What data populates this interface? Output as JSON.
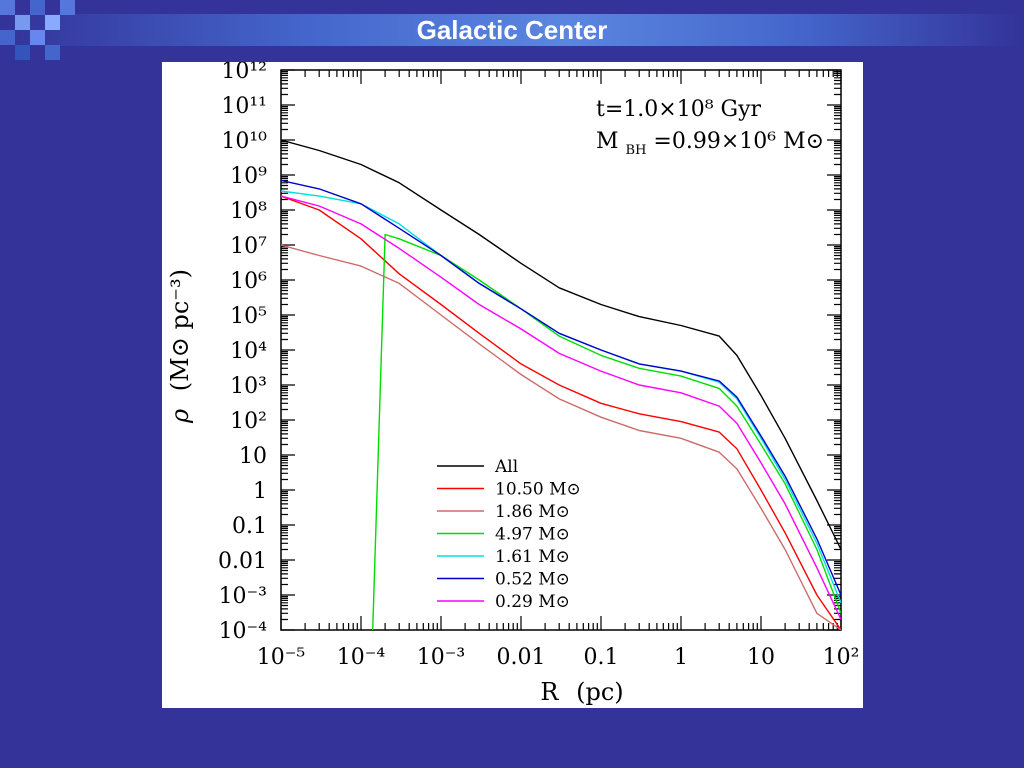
{
  "slide": {
    "title": "Galactic Center"
  },
  "chart_data": {
    "type": "line",
    "xscale": "log",
    "yscale": "log",
    "xlim": [
      1e-05,
      100
    ],
    "ylim": [
      0.0001,
      1000000000000.0
    ],
    "xlabel": {
      "main": "R",
      "unit": "(pc)"
    },
    "ylabel": {
      "main": "ρ",
      "unit": "(M⊙ pc⁻³)"
    },
    "x_tick_labels": [
      "10⁻⁵",
      "10⁻⁴",
      "10⁻³",
      "0.01",
      "0.1",
      "1",
      "10",
      "10²"
    ],
    "y_tick_labels": [
      "10⁻⁴",
      "10⁻³",
      "0.01",
      "0.1",
      "1",
      "10",
      "10²",
      "10³",
      "10⁴",
      "10⁵",
      "10⁶",
      "10⁷",
      "10⁸",
      "10⁹",
      "10¹⁰",
      "10¹¹",
      "10¹²"
    ],
    "annotations": {
      "time": "t=1.0×10⁸ Gyr",
      "bh_mass": "M",
      "bh_sub": "BH",
      "bh_value": "=0.99×10⁶ M⊙"
    },
    "legend_position": "bottom-center",
    "series": [
      {
        "name": "All",
        "color": "#000000",
        "x": [
          1e-05,
          3e-05,
          0.0001,
          0.0003,
          0.001,
          0.003,
          0.01,
          0.03,
          0.1,
          0.3,
          1,
          3,
          5,
          10,
          20,
          50,
          100
        ],
        "y": [
          10000000000.0,
          5000000000.0,
          2000000000.0,
          600000000.0,
          100000000.0,
          20000000.0,
          3000000.0,
          600000.0,
          200000.0,
          90000.0,
          50000.0,
          25000.0,
          7000.0,
          500.0,
          30,
          0.5,
          0.02
        ]
      },
      {
        "name": "10.50 M⊙",
        "color": "#ff0000",
        "x": [
          1e-05,
          3e-05,
          0.0001,
          0.0003,
          0.001,
          0.003,
          0.01,
          0.03,
          0.1,
          0.3,
          1,
          3,
          5,
          10,
          20,
          50,
          100
        ],
        "y": [
          250000000.0,
          100000000.0,
          15000000.0,
          1500000.0,
          200000.0,
          30000.0,
          4000.0,
          1000.0,
          300.0,
          150.0,
          90,
          45,
          15,
          1,
          0.06,
          0.001,
          0.0001
        ]
      },
      {
        "name": "1.86 M⊙",
        "color": "#cd6b6b",
        "x": [
          1e-05,
          3e-05,
          0.0001,
          0.0003,
          0.001,
          0.003,
          0.01,
          0.03,
          0.1,
          0.3,
          1,
          3,
          5,
          10,
          20,
          50,
          100
        ],
        "y": [
          10000000.0,
          5000000.0,
          2500000.0,
          800000.0,
          100000.0,
          15000.0,
          2000.0,
          400.0,
          120.0,
          50,
          30,
          12,
          4,
          0.3,
          0.02,
          0.0003,
          0.0001
        ]
      },
      {
        "name": "4.97 M⊙",
        "color": "#00dd00",
        "x": [
          0.00014,
          0.0002,
          0.0003,
          0.001,
          0.003,
          0.01,
          0.03,
          0.1,
          0.3,
          1,
          3,
          5,
          10,
          20,
          50,
          100
        ],
        "y": [
          0.0001,
          20000000.0,
          15000000.0,
          5000000.0,
          1000000.0,
          150000.0,
          25000.0,
          7000.0,
          3000.0,
          1800.0,
          800.0,
          250.0,
          20,
          1.5,
          0.02,
          0.0003
        ]
      },
      {
        "name": "1.61 M⊙",
        "color": "#00e0e0",
        "x": [
          1e-05,
          3e-05,
          0.0001,
          0.0003,
          0.001,
          0.003,
          0.01,
          0.03,
          0.1,
          0.3,
          1,
          3,
          5,
          10,
          20,
          50,
          100
        ],
        "y": [
          350000000.0,
          250000000.0,
          150000000.0,
          40000000.0,
          5000000.0,
          800000.0,
          150000.0,
          30000.0,
          10000.0,
          4000.0,
          2500.0,
          1200.0,
          400.0,
          30,
          2,
          0.03,
          0.0006
        ]
      },
      {
        "name": "0.52 M⊙",
        "color": "#0000cc",
        "x": [
          1e-05,
          3e-05,
          0.0001,
          0.0003,
          0.001,
          0.003,
          0.01,
          0.03,
          0.1,
          0.3,
          1,
          3,
          5,
          10,
          20,
          50,
          100
        ],
        "y": [
          700000000.0,
          400000000.0,
          150000000.0,
          30000000.0,
          5000000.0,
          800000.0,
          150000.0,
          30000.0,
          10000.0,
          4000.0,
          2500.0,
          1300.0,
          450.0,
          35,
          2.5,
          0.04,
          0.001
        ]
      },
      {
        "name": "0.29 M⊙",
        "color": "#ff00ff",
        "x": [
          1e-05,
          3e-05,
          0.0001,
          0.0003,
          0.001,
          0.003,
          0.01,
          0.03,
          0.1,
          0.3,
          1,
          3,
          5,
          10,
          20,
          50,
          100
        ],
        "y": [
          250000000.0,
          130000000.0,
          40000000.0,
          8000000.0,
          1200000.0,
          200000.0,
          40000.0,
          8000.0,
          2500.0,
          1000.0,
          600.0,
          250.0,
          80,
          6,
          0.4,
          0.006,
          0.0002
        ]
      }
    ]
  }
}
